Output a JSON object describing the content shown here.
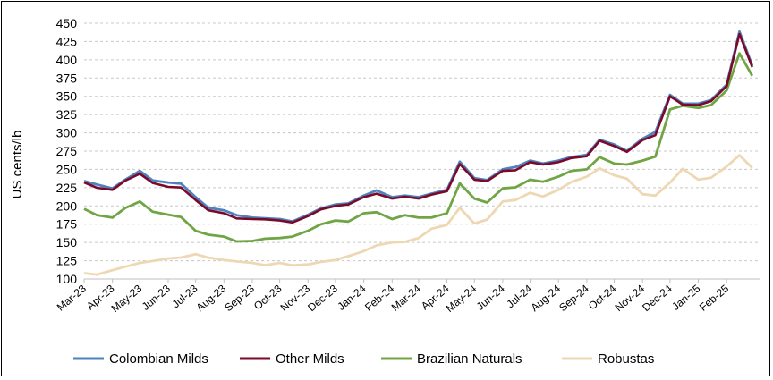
{
  "chart_data": {
    "type": "line",
    "title": "",
    "ylabel": "US cents/lb",
    "xlabel": "",
    "ylim": [
      100,
      450
    ],
    "yticks": [
      100,
      125,
      150,
      175,
      200,
      225,
      250,
      275,
      300,
      325,
      350,
      375,
      400,
      425,
      450
    ],
    "grid": "horizontal dashed",
    "legend": "bottom",
    "x_ticks": [
      "Mar-23",
      "Apr-23",
      "May-23",
      "Jun-23",
      "Jul-23",
      "Aug-23",
      "Sep-23",
      "Oct-23",
      "Nov-23",
      "Dec-23",
      "Jan-24",
      "Feb-24",
      "Mar-24",
      "Apr-24",
      "May-24",
      "Jun-24",
      "Jul-24",
      "Aug-24",
      "Sep-24",
      "Oct-24",
      "Nov-24",
      "Dec-24",
      "Jan-25",
      "Feb-25"
    ],
    "x": [
      "2023-03-01",
      "2023-03-15",
      "2023-04-01",
      "2023-04-15",
      "2023-05-01",
      "2023-05-15",
      "2023-06-01",
      "2023-06-15",
      "2023-07-01",
      "2023-07-15",
      "2023-08-01",
      "2023-08-15",
      "2023-09-01",
      "2023-09-15",
      "2023-10-01",
      "2023-10-15",
      "2023-11-01",
      "2023-11-15",
      "2023-12-01",
      "2023-12-15",
      "2024-01-01",
      "2024-01-15",
      "2024-02-01",
      "2024-02-15",
      "2024-03-01",
      "2024-03-15",
      "2024-04-01",
      "2024-04-15",
      "2024-05-01",
      "2024-05-15",
      "2024-06-01",
      "2024-06-15",
      "2024-07-01",
      "2024-07-15",
      "2024-08-01",
      "2024-08-15",
      "2024-09-01",
      "2024-09-15",
      "2024-10-01",
      "2024-10-15",
      "2024-11-01",
      "2024-11-15",
      "2024-12-01",
      "2024-12-15",
      "2025-01-01",
      "2025-01-15",
      "2025-02-01",
      "2025-02-15",
      "2025-03-01"
    ],
    "series": [
      {
        "name": "Colombian Milds",
        "color": "#4f81bd",
        "values": [
          234,
          228,
          224,
          236,
          248,
          236,
          232,
          230,
          212,
          198,
          194,
          186,
          184,
          183,
          182,
          180,
          188,
          196,
          202,
          204,
          214,
          220,
          212,
          214,
          212,
          218,
          222,
          260,
          238,
          236,
          250,
          252,
          262,
          258,
          262,
          268,
          270,
          290,
          284,
          276,
          292,
          300,
          352,
          340,
          340,
          346,
          366,
          438,
          392
        ]
      },
      {
        "name": "Other Milds",
        "color": "#7b0a2a",
        "values": [
          232,
          226,
          222,
          234,
          244,
          232,
          226,
          224,
          208,
          194,
          190,
          184,
          182,
          181,
          180,
          178,
          186,
          194,
          200,
          202,
          212,
          218,
          210,
          212,
          210,
          216,
          220,
          256,
          236,
          234,
          248,
          250,
          260,
          256,
          260,
          266,
          268,
          288,
          282,
          274,
          290,
          298,
          350,
          338,
          338,
          344,
          364,
          434,
          390
        ]
      },
      {
        "name": "Brazilian Naturals",
        "color": "#70a545",
        "values": [
          196,
          188,
          184,
          196,
          206,
          192,
          188,
          186,
          166,
          160,
          158,
          152,
          152,
          154,
          156,
          158,
          166,
          176,
          180,
          178,
          190,
          192,
          182,
          186,
          184,
          184,
          190,
          232,
          210,
          204,
          224,
          226,
          236,
          232,
          240,
          248,
          250,
          268,
          258,
          256,
          262,
          268,
          332,
          336,
          334,
          338,
          358,
          410,
          378
        ]
      },
      {
        "name": "Robustas",
        "color": "#eed8b4",
        "values": [
          108,
          106,
          112,
          118,
          122,
          124,
          128,
          130,
          134,
          128,
          126,
          124,
          122,
          120,
          122,
          118,
          120,
          124,
          126,
          130,
          138,
          146,
          150,
          152,
          156,
          168,
          174,
          198,
          176,
          180,
          206,
          208,
          218,
          214,
          222,
          232,
          240,
          252,
          242,
          236,
          216,
          214,
          232,
          252,
          236,
          238,
          254,
          270,
          252
        ]
      }
    ]
  }
}
